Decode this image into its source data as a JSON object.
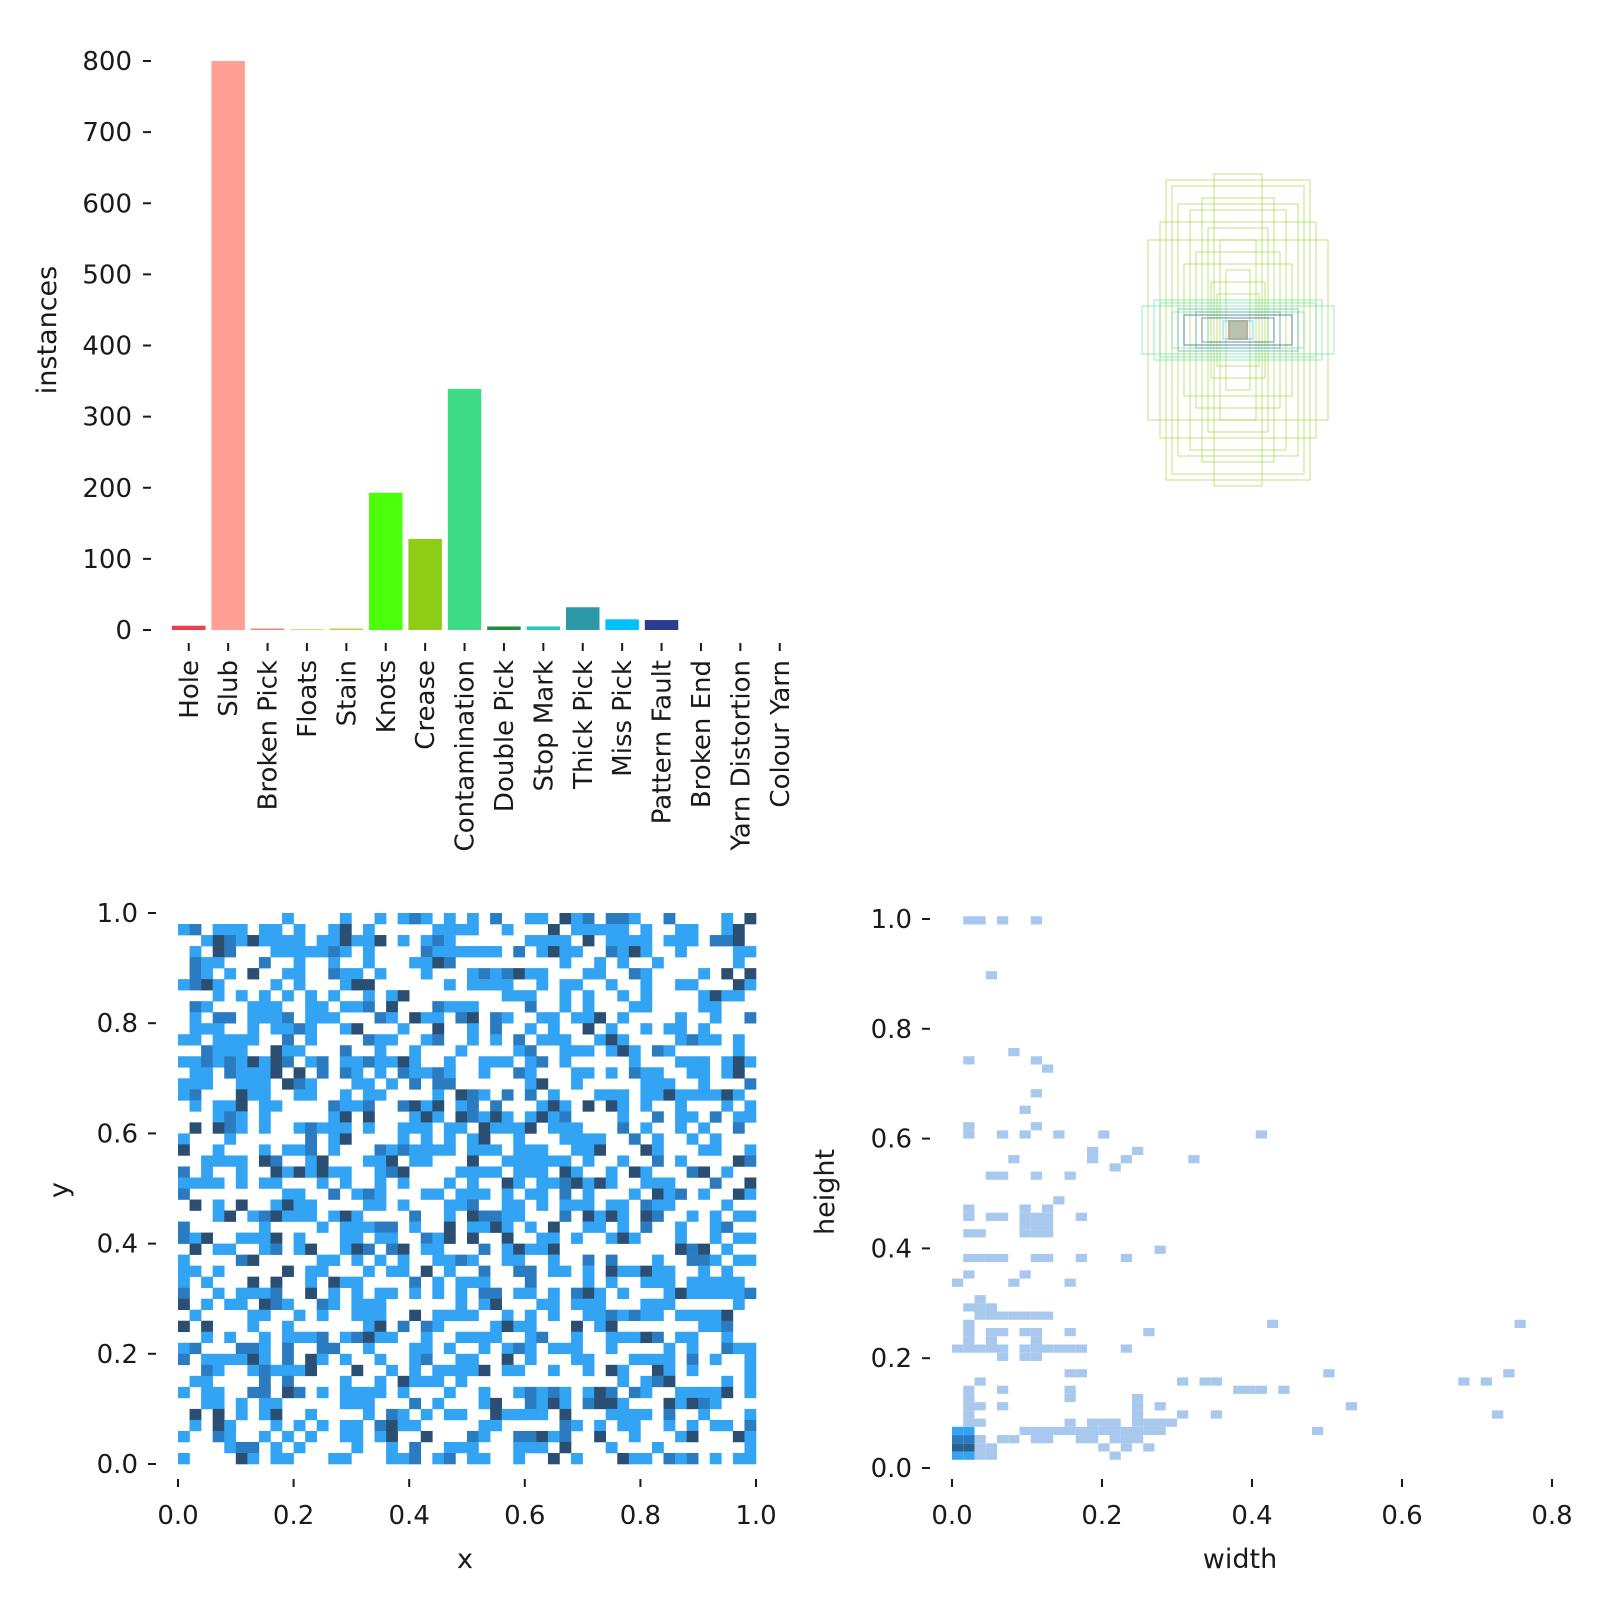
{
  "chart_data": [
    {
      "type": "bar",
      "categories": [
        "Hole",
        "Slub",
        "Broken Pick",
        "Floats",
        "Stain",
        "Knots",
        "Crease",
        "Contamination",
        "Double Pick",
        "Stop Mark",
        "Thick Pick",
        "Miss Pick",
        "Pattern Fault",
        "Broken End",
        "Yarn Distortion",
        "Colour Yarn"
      ],
      "values": [
        6,
        800,
        2,
        1,
        2,
        193,
        128,
        339,
        5,
        5,
        32,
        15,
        14,
        0,
        0,
        0
      ],
      "colors": [
        "#e8414b",
        "#ff9f96",
        "#ff7a6a",
        "#ffb33d",
        "#d9c13d",
        "#4dff0d",
        "#8fcc16",
        "#3ddb85",
        "#1f8e3a",
        "#1fcfb2",
        "#2c99a8",
        "#00c0ff",
        "#293e8f",
        "#3d3d99",
        "#6b3db3",
        "#9a3dcc"
      ],
      "xlabel": "",
      "ylabel": "instances",
      "ylim": [
        0,
        800
      ],
      "yticks": [
        "0",
        "100",
        "200",
        "300",
        "400",
        "500",
        "600",
        "700",
        "800"
      ],
      "grid": false
    },
    {
      "type": "scatter",
      "description_of_marks": "boxes",
      "boxes": [
        {
          "w": 0.08,
          "h": 0.52,
          "color": "#8fcc16"
        },
        {
          "w": 0.12,
          "h": 0.44,
          "color": "#8fcc16"
        },
        {
          "w": 0.16,
          "h": 0.4,
          "color": "#8fcc16"
        },
        {
          "w": 0.22,
          "h": 0.48,
          "color": "#8fcc16"
        },
        {
          "w": 0.3,
          "h": 0.3,
          "color": "#8fcc16"
        },
        {
          "w": 0.26,
          "h": 0.36,
          "color": "#8fcc16"
        },
        {
          "w": 0.06,
          "h": 0.3,
          "color": "#8fcc16"
        },
        {
          "w": 0.1,
          "h": 0.34,
          "color": "#8fcc16"
        },
        {
          "w": 0.14,
          "h": 0.26,
          "color": "#8fcc16"
        },
        {
          "w": 0.04,
          "h": 0.2,
          "color": "#8fcc16"
        },
        {
          "w": 0.18,
          "h": 0.22,
          "color": "#8fcc16"
        },
        {
          "w": 0.09,
          "h": 0.16,
          "color": "#8fcc16"
        },
        {
          "w": 0.07,
          "h": 0.12,
          "color": "#8fcc16"
        },
        {
          "w": 0.2,
          "h": 0.42,
          "color": "#8fcc16"
        },
        {
          "w": 0.24,
          "h": 0.5,
          "color": "#8fcc16"
        },
        {
          "w": 0.32,
          "h": 0.08,
          "color": "#3ddb85"
        },
        {
          "w": 0.28,
          "h": 0.1,
          "color": "#3ddb85"
        },
        {
          "w": 0.22,
          "h": 0.06,
          "color": "#3ddb85"
        },
        {
          "w": 0.18,
          "h": 0.05,
          "color": "#3ddb85"
        },
        {
          "w": 0.26,
          "h": 0.09,
          "color": "#3ddb85"
        },
        {
          "w": 0.1,
          "h": 0.04,
          "color": "#3ddb85"
        },
        {
          "w": 0.18,
          "h": 0.05,
          "color": "#293e8f"
        },
        {
          "w": 0.12,
          "h": 0.04,
          "color": "#293e8f"
        },
        {
          "w": 0.14,
          "h": 0.06,
          "color": "#2c99a8"
        },
        {
          "w": 0.2,
          "h": 0.07,
          "color": "#2c99a8"
        },
        {
          "w": 0.05,
          "h": 0.03,
          "color": "#00c0ff"
        },
        {
          "w": 0.03,
          "h": 0.03,
          "color": "#e8414b"
        }
      ]
    },
    {
      "type": "heatmap",
      "title": "",
      "xlabel": "x",
      "ylabel": "y",
      "xlim": [
        0,
        1
      ],
      "ylim": [
        0,
        1
      ],
      "xticks": [
        "0.0",
        "0.2",
        "0.4",
        "0.6",
        "0.8",
        "1.0"
      ],
      "yticks": [
        "0.0",
        "0.2",
        "0.4",
        "0.6",
        "0.8",
        "1.0"
      ],
      "bins": 50,
      "colors": {
        "light": "#33a3f4",
        "mid": "#2a7bc0",
        "dark": "#2b4f73"
      }
    },
    {
      "type": "heatmap",
      "title": "",
      "xlabel": "width",
      "ylabel": "height",
      "xlim": [
        0,
        0.8
      ],
      "ylim": [
        0,
        1
      ],
      "xticks": [
        "0.0",
        "0.2",
        "0.4",
        "0.6",
        "0.8"
      ],
      "yticks": [
        "0.0",
        "0.2",
        "0.4",
        "0.6",
        "0.8",
        "1.0"
      ],
      "cells": [
        [
          0.0,
          0.03,
          "dark"
        ],
        [
          0.015,
          0.03,
          "dark"
        ],
        [
          0.0,
          0.045,
          "mid"
        ],
        [
          0.015,
          0.045,
          "mid"
        ],
        [
          0.0,
          0.06,
          "light"
        ],
        [
          0.015,
          0.06,
          "light"
        ],
        [
          0.03,
          0.015,
          "pale"
        ],
        [
          0.03,
          0.03,
          "pale"
        ],
        [
          0.03,
          0.045,
          "pale"
        ],
        [
          0.0,
          0.015,
          "light"
        ],
        [
          0.015,
          0.015,
          "light"
        ],
        [
          0.045,
          0.03,
          "pale"
        ],
        [
          0.045,
          0.015,
          "pale"
        ],
        [
          0.015,
          0.075,
          "pale"
        ],
        [
          0.03,
          0.075,
          "pale"
        ],
        [
          0.015,
          0.09,
          "pale"
        ],
        [
          0.015,
          0.105,
          "pale"
        ],
        [
          0.03,
          0.105,
          "pale"
        ],
        [
          0.015,
          0.12,
          "pale"
        ],
        [
          0.015,
          0.135,
          "pale"
        ],
        [
          0.03,
          0.15,
          "pale"
        ],
        [
          0.0,
          0.21,
          "pale"
        ],
        [
          0.015,
          0.21,
          "pale"
        ],
        [
          0.03,
          0.21,
          "pale"
        ],
        [
          0.045,
          0.21,
          "pale"
        ],
        [
          0.06,
          0.21,
          "pale"
        ],
        [
          0.015,
          0.225,
          "pale"
        ],
        [
          0.045,
          0.225,
          "pale"
        ],
        [
          0.06,
          0.195,
          "pale"
        ],
        [
          0.09,
          0.195,
          "pale"
        ],
        [
          0.105,
          0.195,
          "pale"
        ],
        [
          0.09,
          0.21,
          "pale"
        ],
        [
          0.105,
          0.21,
          "pale"
        ],
        [
          0.03,
          0.27,
          "pale"
        ],
        [
          0.045,
          0.27,
          "pale"
        ],
        [
          0.06,
          0.27,
          "pale"
        ],
        [
          0.075,
          0.27,
          "pale"
        ],
        [
          0.09,
          0.27,
          "pale"
        ],
        [
          0.105,
          0.27,
          "pale"
        ],
        [
          0.12,
          0.27,
          "pale"
        ],
        [
          0.03,
          0.285,
          "pale"
        ],
        [
          0.045,
          0.285,
          "pale"
        ],
        [
          0.015,
          0.24,
          "pale"
        ],
        [
          0.015,
          0.255,
          "pale"
        ],
        [
          0.03,
          0.3,
          "pale"
        ],
        [
          0.0,
          0.33,
          "pale"
        ],
        [
          0.015,
          0.345,
          "pale"
        ],
        [
          0.015,
          0.375,
          "pale"
        ],
        [
          0.03,
          0.375,
          "pale"
        ],
        [
          0.045,
          0.375,
          "pale"
        ],
        [
          0.06,
          0.375,
          "pale"
        ],
        [
          0.105,
          0.375,
          "pale"
        ],
        [
          0.12,
          0.375,
          "pale"
        ],
        [
          0.09,
          0.345,
          "pale"
        ],
        [
          0.075,
          0.33,
          "pale"
        ],
        [
          0.015,
          0.42,
          "pale"
        ],
        [
          0.015,
          0.45,
          "pale"
        ],
        [
          0.015,
          0.465,
          "pale"
        ],
        [
          0.045,
          0.45,
          "pale"
        ],
        [
          0.06,
          0.45,
          "pale"
        ],
        [
          0.09,
          0.42,
          "pale"
        ],
        [
          0.09,
          0.435,
          "pale"
        ],
        [
          0.09,
          0.45,
          "pale"
        ],
        [
          0.09,
          0.465,
          "pale"
        ],
        [
          0.12,
          0.42,
          "pale"
        ],
        [
          0.12,
          0.435,
          "pale"
        ],
        [
          0.12,
          0.45,
          "pale"
        ],
        [
          0.12,
          0.465,
          "pale"
        ],
        [
          0.105,
          0.42,
          "pale"
        ],
        [
          0.105,
          0.435,
          "pale"
        ],
        [
          0.105,
          0.45,
          "pale"
        ],
        [
          0.045,
          0.525,
          "pale"
        ],
        [
          0.06,
          0.525,
          "pale"
        ],
        [
          0.015,
          0.6,
          "pale"
        ],
        [
          0.015,
          0.615,
          "pale"
        ],
        [
          0.06,
          0.6,
          "pale"
        ],
        [
          0.09,
          0.6,
          "pale"
        ],
        [
          0.105,
          0.615,
          "pale"
        ],
        [
          0.135,
          0.6,
          "pale"
        ],
        [
          0.075,
          0.555,
          "pale"
        ],
        [
          0.105,
          0.525,
          "pale"
        ],
        [
          0.15,
          0.525,
          "pale"
        ],
        [
          0.18,
          0.555,
          "pale"
        ],
        [
          0.18,
          0.57,
          "pale"
        ],
        [
          0.195,
          0.6,
          "pale"
        ],
        [
          0.21,
          0.54,
          "pale"
        ],
        [
          0.225,
          0.555,
          "pale"
        ],
        [
          0.24,
          0.57,
          "pale"
        ],
        [
          0.315,
          0.555,
          "pale"
        ],
        [
          0.405,
          0.6,
          "pale"
        ],
        [
          0.015,
          0.735,
          "pale"
        ],
        [
          0.075,
          0.75,
          "pale"
        ],
        [
          0.105,
          0.735,
          "pale"
        ],
        [
          0.12,
          0.72,
          "pale"
        ],
        [
          0.105,
          0.675,
          "pale"
        ],
        [
          0.09,
          0.645,
          "pale"
        ],
        [
          0.045,
          0.89,
          "pale"
        ],
        [
          0.015,
          0.99,
          "pale"
        ],
        [
          0.03,
          0.99,
          "pale"
        ],
        [
          0.06,
          0.99,
          "pale"
        ],
        [
          0.105,
          0.99,
          "pale"
        ],
        [
          0.06,
          0.135,
          "pale"
        ],
        [
          0.06,
          0.105,
          "pale"
        ],
        [
          0.09,
          0.06,
          "pale"
        ],
        [
          0.105,
          0.06,
          "pale"
        ],
        [
          0.12,
          0.06,
          "pale"
        ],
        [
          0.135,
          0.06,
          "pale"
        ],
        [
          0.15,
          0.06,
          "pale"
        ],
        [
          0.165,
          0.06,
          "pale"
        ],
        [
          0.18,
          0.06,
          "pale"
        ],
        [
          0.195,
          0.06,
          "pale"
        ],
        [
          0.21,
          0.06,
          "pale"
        ],
        [
          0.225,
          0.06,
          "pale"
        ],
        [
          0.24,
          0.06,
          "pale"
        ],
        [
          0.255,
          0.06,
          "pale"
        ],
        [
          0.27,
          0.06,
          "pale"
        ],
        [
          0.06,
          0.045,
          "pale"
        ],
        [
          0.075,
          0.045,
          "pale"
        ],
        [
          0.105,
          0.045,
          "pale"
        ],
        [
          0.12,
          0.045,
          "pale"
        ],
        [
          0.165,
          0.045,
          "pale"
        ],
        [
          0.18,
          0.045,
          "pale"
        ],
        [
          0.21,
          0.045,
          "pale"
        ],
        [
          0.225,
          0.045,
          "pale"
        ],
        [
          0.24,
          0.045,
          "pale"
        ],
        [
          0.15,
          0.075,
          "pale"
        ],
        [
          0.18,
          0.075,
          "pale"
        ],
        [
          0.195,
          0.075,
          "pale"
        ],
        [
          0.21,
          0.075,
          "pale"
        ],
        [
          0.24,
          0.075,
          "pale"
        ],
        [
          0.255,
          0.075,
          "pale"
        ],
        [
          0.27,
          0.075,
          "pale"
        ],
        [
          0.24,
          0.09,
          "pale"
        ],
        [
          0.285,
          0.075,
          "pale"
        ],
        [
          0.24,
          0.105,
          "pale"
        ],
        [
          0.24,
          0.12,
          "pale"
        ],
        [
          0.27,
          0.105,
          "pale"
        ],
        [
          0.195,
          0.03,
          "pale"
        ],
        [
          0.225,
          0.03,
          "pale"
        ],
        [
          0.255,
          0.03,
          "pale"
        ],
        [
          0.21,
          0.015,
          "pale"
        ],
        [
          0.3,
          0.09,
          "pale"
        ],
        [
          0.3,
          0.15,
          "pale"
        ],
        [
          0.33,
          0.15,
          "pale"
        ],
        [
          0.345,
          0.15,
          "pale"
        ],
        [
          0.345,
          0.09,
          "pale"
        ],
        [
          0.375,
          0.135,
          "pale"
        ],
        [
          0.39,
          0.135,
          "pale"
        ],
        [
          0.405,
          0.135,
          "pale"
        ],
        [
          0.435,
          0.135,
          "pale"
        ],
        [
          0.48,
          0.06,
          "pale"
        ],
        [
          0.495,
          0.165,
          "pale"
        ],
        [
          0.525,
          0.105,
          "pale"
        ],
        [
          0.42,
          0.255,
          "pale"
        ],
        [
          0.675,
          0.15,
          "pale"
        ],
        [
          0.705,
          0.15,
          "pale"
        ],
        [
          0.735,
          0.165,
          "pale"
        ],
        [
          0.72,
          0.09,
          "pale"
        ],
        [
          0.75,
          0.255,
          "pale"
        ],
        [
          0.12,
          0.21,
          "pale"
        ],
        [
          0.135,
          0.21,
          "pale"
        ],
        [
          0.15,
          0.165,
          "pale"
        ],
        [
          0.15,
          0.21,
          "pale"
        ],
        [
          0.15,
          0.24,
          "pale"
        ],
        [
          0.165,
          0.165,
          "pale"
        ],
        [
          0.165,
          0.21,
          "pale"
        ],
        [
          0.225,
          0.21,
          "pale"
        ],
        [
          0.255,
          0.24,
          "pale"
        ],
        [
          0.15,
          0.12,
          "pale"
        ],
        [
          0.15,
          0.135,
          "pale"
        ],
        [
          0.225,
          0.375,
          "pale"
        ],
        [
          0.15,
          0.33,
          "pale"
        ],
        [
          0.165,
          0.375,
          "pale"
        ],
        [
          0.27,
          0.39,
          "pale"
        ],
        [
          0.015,
          0.285,
          "pale"
        ],
        [
          0.045,
          0.24,
          "pale"
        ],
        [
          0.06,
          0.24,
          "pale"
        ],
        [
          0.09,
          0.24,
          "pale"
        ],
        [
          0.105,
          0.24,
          "pale"
        ],
        [
          0.105,
          0.225,
          "pale"
        ],
        [
          0.165,
          0.45,
          "pale"
        ],
        [
          0.135,
          0.48,
          "pale"
        ],
        [
          0.03,
          0.42,
          "pale"
        ]
      ],
      "colors": {
        "pale": "#a9c8ee",
        "light": "#33a3f4",
        "mid": "#2a7bc0",
        "dark": "#2b5f8f"
      }
    }
  ]
}
